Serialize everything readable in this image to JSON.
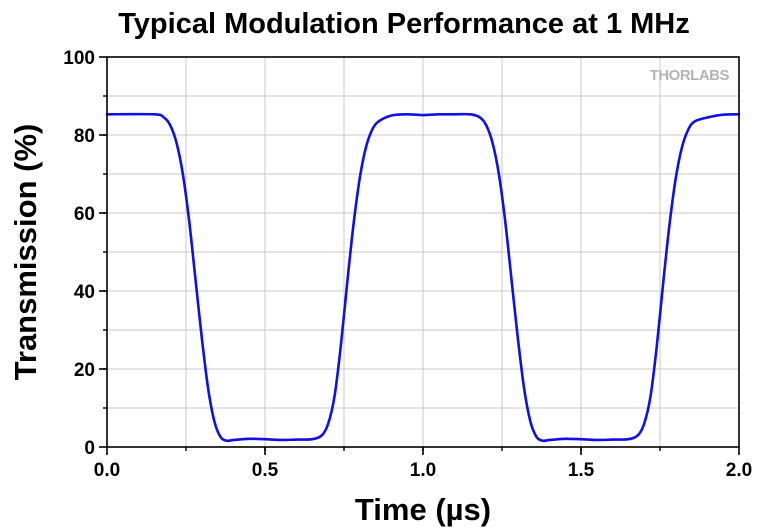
{
  "chart_data": {
    "type": "line",
    "title": "Typical Modulation Performance at 1 MHz",
    "xlabel": "Time (µs)",
    "ylabel": "Transmission (%)",
    "xlim": [
      0.0,
      2.0
    ],
    "ylim": [
      0,
      100
    ],
    "xticks": [
      "0.0",
      "0.5",
      "1.0",
      "1.5",
      "2.0"
    ],
    "yticks": [
      "0",
      "20",
      "40",
      "60",
      "80",
      "100"
    ],
    "grid": true,
    "line_color": "#1010e6",
    "watermark": "THORLABS",
    "series": [
      {
        "x": [
          0.0,
          0.15,
          0.18,
          0.2,
          0.22,
          0.24,
          0.26,
          0.28,
          0.3,
          0.32,
          0.34,
          0.36,
          0.38,
          0.4,
          0.45,
          0.5,
          0.55,
          0.6,
          0.65,
          0.68,
          0.7,
          0.72,
          0.74,
          0.76,
          0.78,
          0.8,
          0.82,
          0.84,
          0.86,
          0.9,
          0.95,
          1.0,
          1.05,
          1.1,
          1.15,
          1.18,
          1.2,
          1.22,
          1.24,
          1.26,
          1.28,
          1.3,
          1.32,
          1.34,
          1.36,
          1.38,
          1.4,
          1.45,
          1.5,
          1.55,
          1.6,
          1.65,
          1.68,
          1.7,
          1.72,
          1.74,
          1.76,
          1.78,
          1.8,
          1.82,
          1.84,
          1.86,
          1.9,
          1.95,
          2.0
        ],
        "y": [
          85.3,
          85.3,
          84.5,
          82.5,
          78,
          70,
          58,
          43,
          28,
          15,
          6.5,
          2.5,
          1.6,
          1.8,
          2.1,
          2.0,
          1.8,
          1.9,
          2.0,
          3.0,
          6,
          13,
          26,
          42,
          57,
          69,
          77,
          81.5,
          83.5,
          85,
          85.3,
          85.1,
          85.3,
          85.3,
          85.3,
          84.5,
          82.5,
          78,
          70,
          58,
          43,
          28,
          15,
          6.5,
          2.5,
          1.6,
          1.8,
          2.1,
          2.0,
          1.8,
          1.9,
          2.0,
          3.0,
          6,
          13,
          26,
          42,
          57,
          69,
          77,
          81.5,
          83.5,
          84.5,
          85.2,
          85.3
        ]
      }
    ]
  }
}
